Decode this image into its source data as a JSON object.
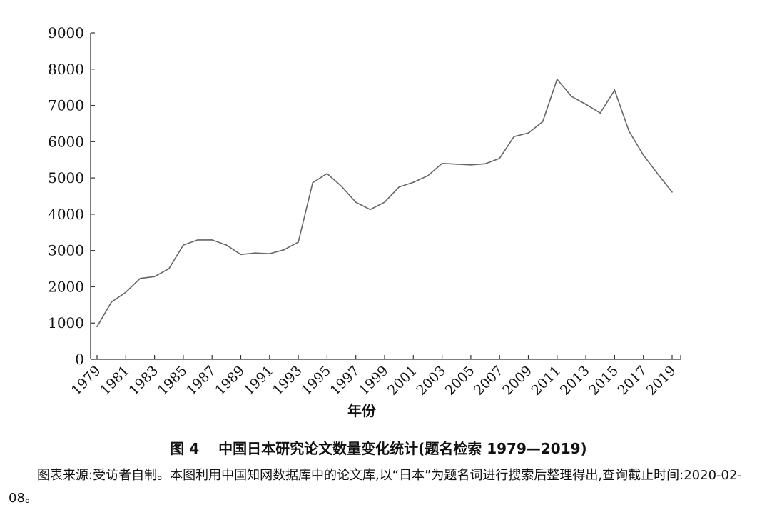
{
  "chart_data": {
    "type": "line",
    "title": "",
    "xlabel": "年份",
    "ylabel": "",
    "ylim": [
      0,
      9000
    ],
    "yticks": [
      0,
      1000,
      2000,
      3000,
      4000,
      5000,
      6000,
      7000,
      8000,
      9000
    ],
    "xlim": [
      1979,
      2019
    ],
    "xticks": [
      1979,
      1981,
      1983,
      1985,
      1987,
      1989,
      1991,
      1993,
      1995,
      1997,
      1999,
      2001,
      2003,
      2005,
      2007,
      2009,
      2011,
      2013,
      2015,
      2017,
      2019
    ],
    "grid": false,
    "legend": "none",
    "line_color": "#666666",
    "series": [
      {
        "x": [
          1979,
          1980,
          1981,
          1982,
          1983,
          1984,
          1985,
          1986,
          1987,
          1988,
          1989,
          1990,
          1991,
          1992,
          1993,
          1994,
          1995,
          1996,
          1997,
          1998,
          1999,
          2000,
          2001,
          2002,
          2003,
          2004,
          2005,
          2006,
          2007,
          2008,
          2009,
          2010,
          2011,
          2012,
          2013,
          2014,
          2015,
          2016,
          2017,
          2018,
          2019
        ],
        "values": [
          900,
          1580,
          1850,
          2230,
          2280,
          2500,
          3150,
          3290,
          3290,
          3150,
          2890,
          2930,
          2910,
          3020,
          3230,
          4870,
          5120,
          4770,
          4330,
          4130,
          4330,
          4750,
          4880,
          5060,
          5400,
          5380,
          5360,
          5390,
          5540,
          6140,
          6240,
          6550,
          7720,
          7250,
          7030,
          6790,
          7420,
          6290,
          5630,
          5110,
          4610
        ]
      }
    ]
  },
  "figure_caption": "图 4　 中国日本研究论文数量变化统计(题名检索 1979—2019)",
  "source_note": "图表来源:受访者自制。本图利用中国知网数据库中的论文库,以“日本”为题名词进行搜索后整理得出,查询截止时间:2020-02-08。"
}
